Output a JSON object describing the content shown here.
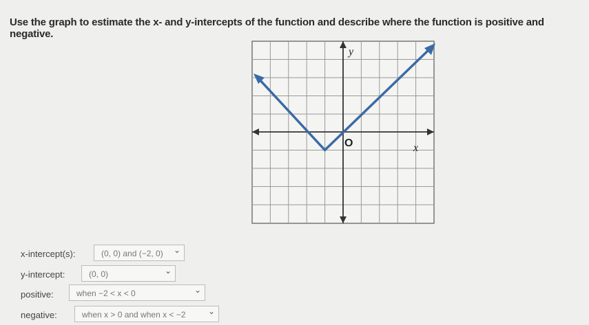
{
  "question": "Use the graph to estimate the x- and y-intercepts of the function and describe where the function is positive and negative.",
  "graph": {
    "x_axis_label": "x",
    "y_axis_label": "y",
    "origin_label": "O"
  },
  "answers": [
    {
      "label": "x-intercept(s):",
      "value": "(0, 0) and (−2, 0)"
    },
    {
      "label": "y-intercept:",
      "value": "(0, 0)"
    },
    {
      "label": "positive:",
      "value": "when −2 < x < 0"
    },
    {
      "label": "negative:",
      "value": "when x > 0 and when x < −2"
    }
  ]
}
